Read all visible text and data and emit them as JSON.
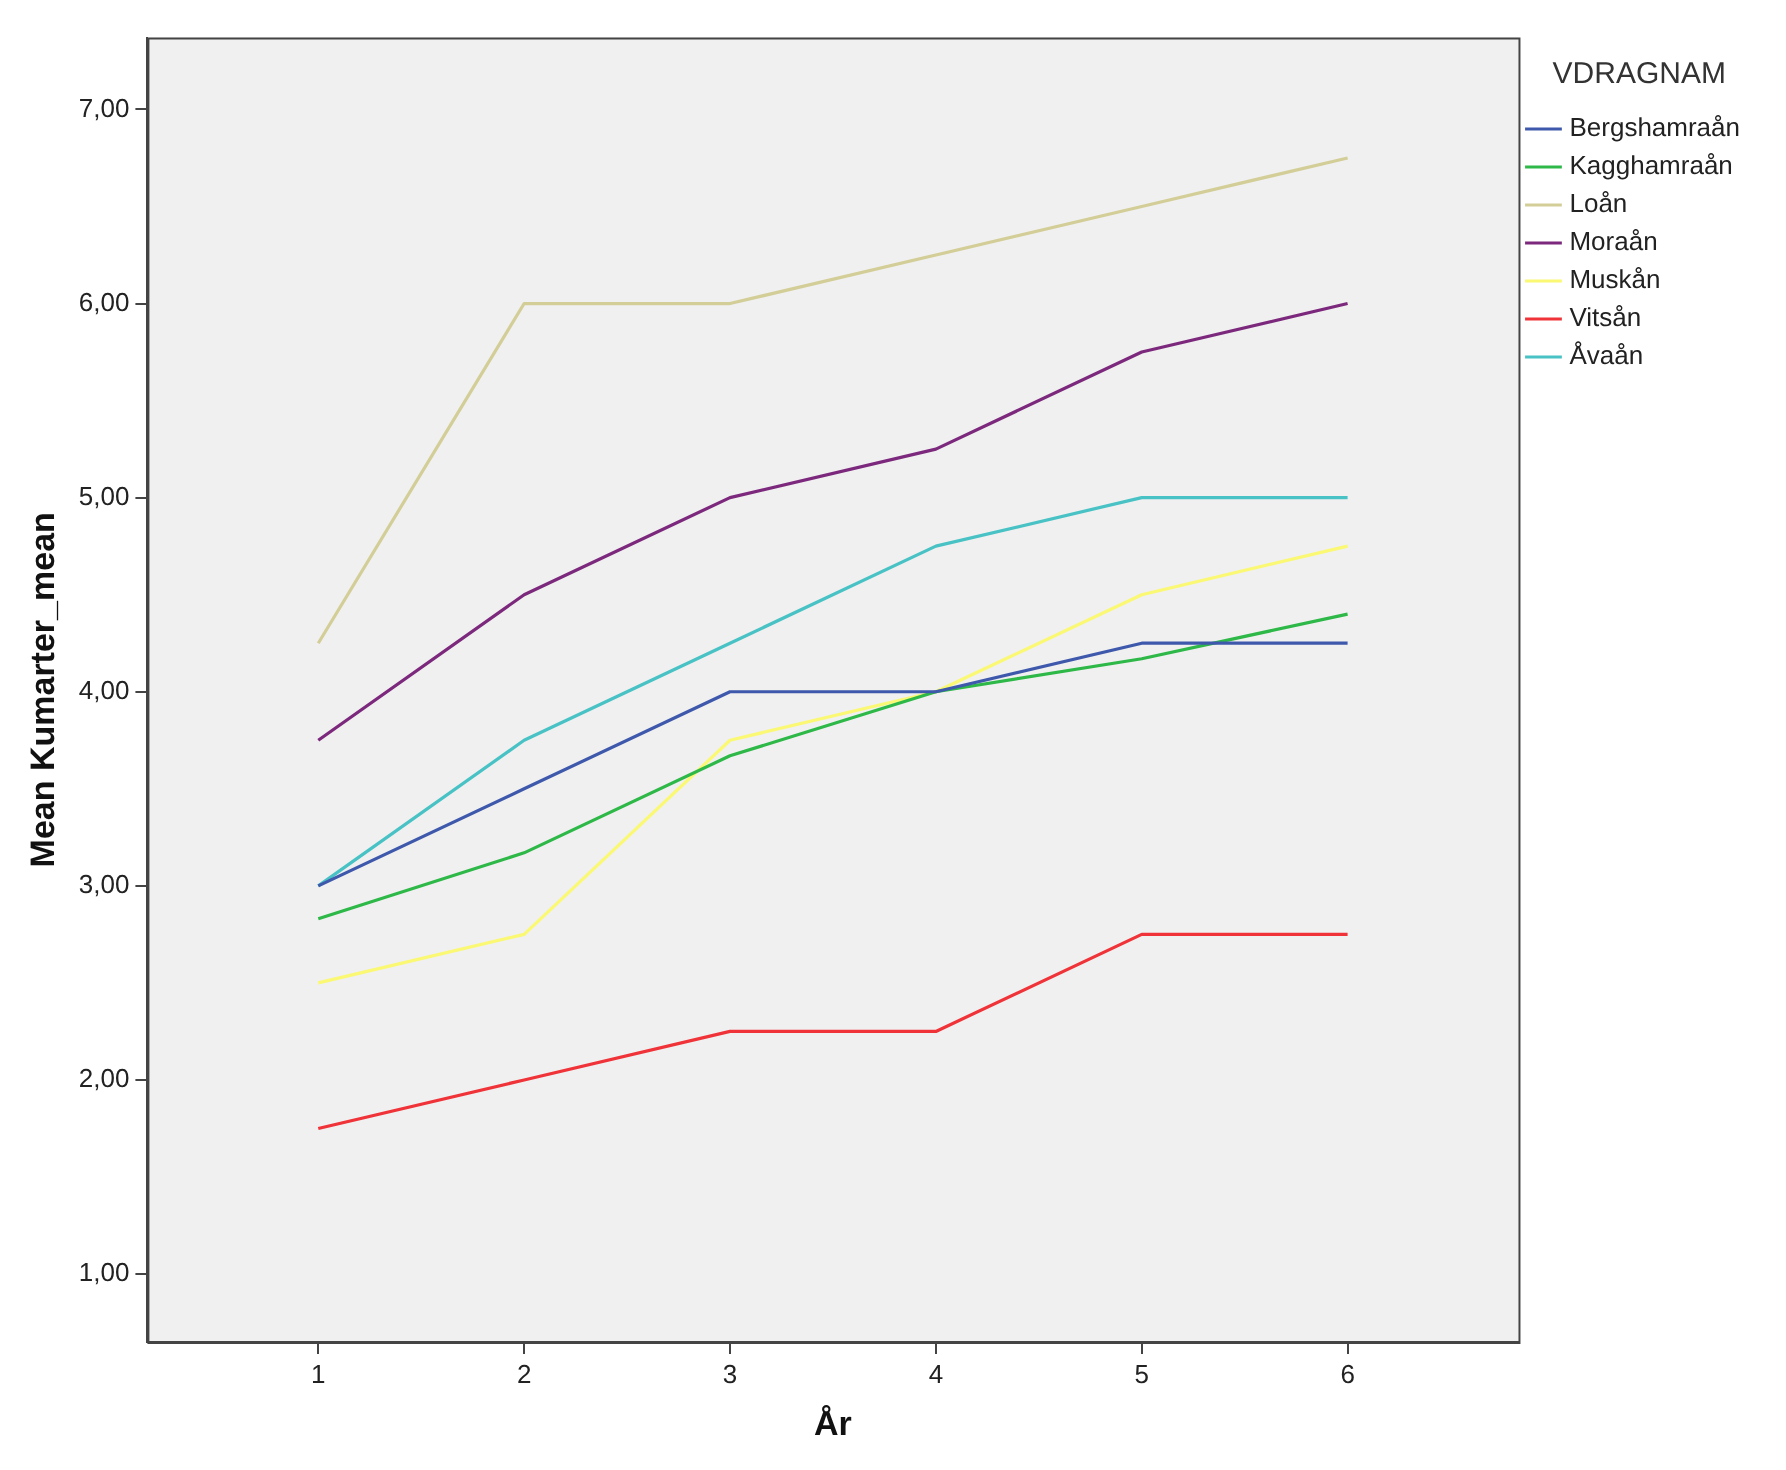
{
  "chart_data": {
    "type": "line",
    "xlabel": "År",
    "ylabel": "Mean Kumarter_mean",
    "legend_title": "VDRAGNAM",
    "legend": "right",
    "grid": false,
    "marker": "none",
    "line_style": "solid",
    "x": [
      1,
      2,
      3,
      4,
      5,
      6
    ],
    "xlim": [
      0.17,
      6.83
    ],
    "xticks": [
      1,
      2,
      3,
      4,
      5,
      6
    ],
    "ylim": [
      0.65,
      7.37
    ],
    "yticks": [
      {
        "value": 1,
        "label": "1,00"
      },
      {
        "value": 2,
        "label": "2,00"
      },
      {
        "value": 3,
        "label": "3,00"
      },
      {
        "value": 4,
        "label": "4,00"
      },
      {
        "value": 5,
        "label": "5,00"
      },
      {
        "value": 6,
        "label": "6,00"
      },
      {
        "value": 7,
        "label": "7,00"
      }
    ],
    "series": [
      {
        "name": "Bergshamraån",
        "color": "#3e58ac",
        "values": [
          3.0,
          3.5,
          4.0,
          4.0,
          4.25,
          4.25
        ]
      },
      {
        "name": "Kagghamraån",
        "color": "#2eb848",
        "values": [
          2.83,
          3.17,
          3.67,
          4.0,
          4.17,
          4.4
        ]
      },
      {
        "name": "Loån",
        "color": "#d3ce97",
        "values": [
          4.25,
          6.0,
          6.0,
          6.25,
          6.5,
          6.75
        ]
      },
      {
        "name": "Moraån",
        "color": "#7c287d",
        "values": [
          3.75,
          4.5,
          5.0,
          5.25,
          5.75,
          6.0
        ]
      },
      {
        "name": "Muskån",
        "color": "#fbf873",
        "values": [
          2.5,
          2.75,
          3.75,
          4.0,
          4.5,
          4.75
        ]
      },
      {
        "name": "Vitsån",
        "color": "#ef3338",
        "values": [
          1.75,
          2.0,
          2.25,
          2.25,
          2.75,
          2.75
        ]
      },
      {
        "name": "Åvaån",
        "color": "#48c2c5",
        "values": [
          3.0,
          3.75,
          4.25,
          4.75,
          5.0,
          5.0
        ]
      }
    ]
  }
}
